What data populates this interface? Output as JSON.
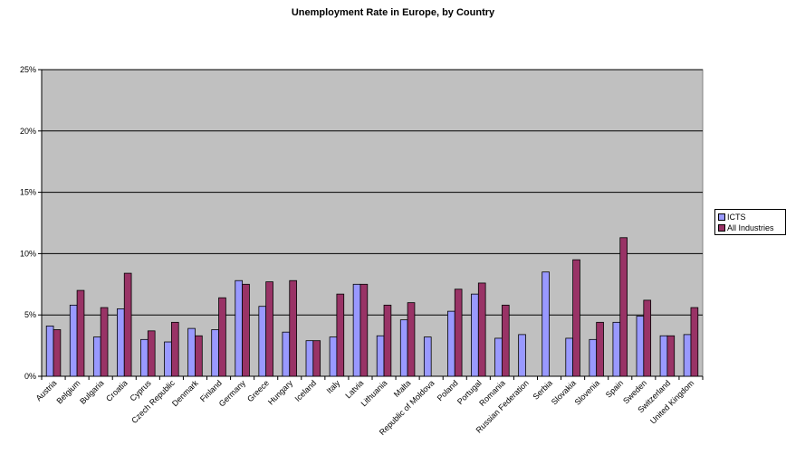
{
  "chart_data": {
    "type": "bar",
    "title": "Unemployment Rate in Europe, by Country",
    "xlabel": "",
    "ylabel": "",
    "ylim": [
      0,
      25
    ],
    "yticks": [
      "0%",
      "5%",
      "10%",
      "15%",
      "20%",
      "25%"
    ],
    "ytick_values": [
      0,
      5,
      10,
      15,
      20,
      25
    ],
    "grid": true,
    "legend_position": "right",
    "categories": [
      "Austria",
      "Belgium",
      "Bulgaria",
      "Croatia",
      "Cyprus",
      "Czech Republic",
      "Denmark",
      "Finland",
      "Germany",
      "Greece",
      "Hungary",
      "Iceland",
      "Italy",
      "Latvia",
      "Lithuania",
      "Malta",
      "Republic of Moldova",
      "Poland",
      "Portugal",
      "Romania",
      "Russian Federation",
      "Serbia",
      "Slovakia",
      "Slovenia",
      "Spain",
      "Sweden",
      "Switzerland",
      "United Kingdom"
    ],
    "series": [
      {
        "name": "ICTS",
        "color": "#9999ff",
        "values": [
          4.1,
          5.8,
          3.2,
          5.5,
          3.0,
          2.8,
          3.9,
          3.8,
          7.8,
          5.7,
          3.6,
          2.9,
          3.2,
          7.5,
          3.3,
          4.6,
          3.2,
          5.3,
          6.7,
          3.1,
          3.4,
          8.5,
          3.1,
          3.0,
          4.4,
          4.9,
          3.3,
          3.4
        ]
      },
      {
        "name": "All Industries",
        "color": "#993366",
        "values": [
          3.8,
          7.0,
          5.6,
          8.4,
          3.7,
          4.4,
          3.3,
          6.4,
          7.5,
          7.7,
          7.8,
          2.9,
          6.7,
          7.5,
          5.8,
          6.0,
          null,
          7.1,
          7.6,
          5.8,
          null,
          null,
          9.5,
          4.4,
          11.3,
          6.2,
          3.3,
          5.6
        ]
      }
    ]
  },
  "style": {
    "plot_background": "#c0c0c0",
    "gridline_color": "#000000"
  }
}
